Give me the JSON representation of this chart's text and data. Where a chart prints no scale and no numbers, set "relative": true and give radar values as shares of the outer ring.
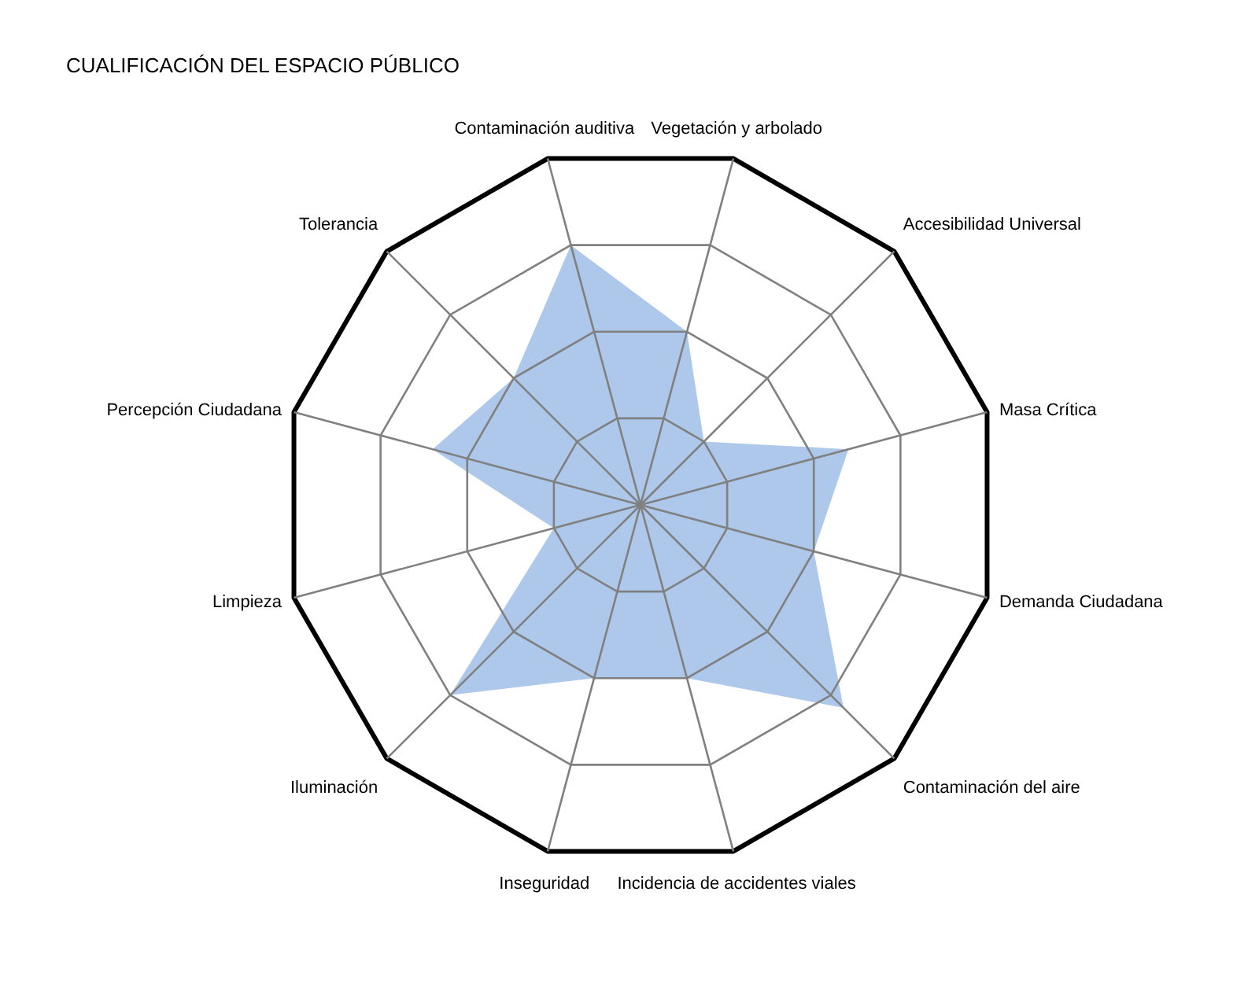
{
  "chart_data": {
    "type": "radar",
    "title": "CUALIFICACIÓN DEL ESPACIO PÚBLICO",
    "relative": true,
    "categories": [
      "Vegetación y arbolado",
      "Accesibilidad Universal",
      "Masa Crítica",
      "Demanda Ciudadana",
      "Contaminación del aire",
      "Incidencia de accidentes viales",
      "Inseguridad",
      "Iluminación",
      "Limpieza",
      "Percepción Ciudadana",
      "Tolerancia",
      "Contaminación auditiva"
    ],
    "series": [
      {
        "color": "#a4c2e8",
        "values": [
          0.5,
          0.25,
          0.6,
          0.5,
          0.8,
          0.5,
          0.5,
          0.75,
          0.25,
          0.6,
          0.5,
          0.75
        ]
      }
    ],
    "grid": true
  }
}
